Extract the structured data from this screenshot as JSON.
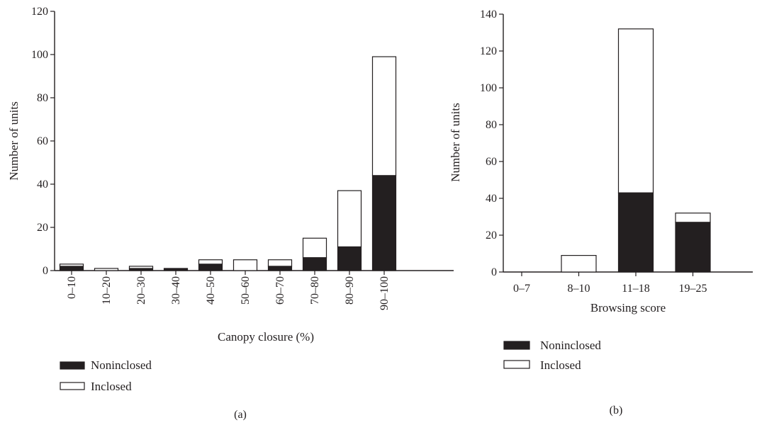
{
  "chart_data": [
    {
      "type": "bar",
      "stacked": true,
      "panel_label": "(a)",
      "xlabel": "Canopy closure (%)",
      "ylabel": "Number of units",
      "ylim": [
        0,
        120
      ],
      "yticks": [
        0,
        20,
        40,
        60,
        80,
        100,
        120
      ],
      "categories": [
        "0–10",
        "10–20",
        "20–30",
        "30–40",
        "40–50",
        "50–60",
        "60–70",
        "70–80",
        "80–90",
        "90–100"
      ],
      "series": [
        {
          "name": "Noninclosed",
          "color": "#231f20",
          "values": [
            2,
            0,
            1,
            1,
            3,
            0,
            2,
            6,
            11,
            44
          ]
        },
        {
          "name": "Inclosed",
          "color": "#ffffff",
          "values": [
            1,
            1,
            1,
            0,
            2,
            5,
            3,
            9,
            26,
            55
          ]
        }
      ],
      "legend_position": "bottom-left",
      "grid": false
    },
    {
      "type": "bar",
      "stacked": true,
      "panel_label": "(b)",
      "xlabel": "Browsing score",
      "ylabel": "Number of units",
      "ylim": [
        0,
        140
      ],
      "yticks": [
        0,
        20,
        40,
        60,
        80,
        100,
        120,
        140
      ],
      "categories": [
        "0–7",
        "8–10",
        "11–18",
        "19–25"
      ],
      "series": [
        {
          "name": "Noninclosed",
          "color": "#231f20",
          "values": [
            0,
            0,
            43,
            27
          ]
        },
        {
          "name": "Inclosed",
          "color": "#ffffff",
          "values": [
            0,
            9,
            89,
            5
          ]
        }
      ],
      "legend_position": "bottom-left",
      "grid": false
    }
  ]
}
